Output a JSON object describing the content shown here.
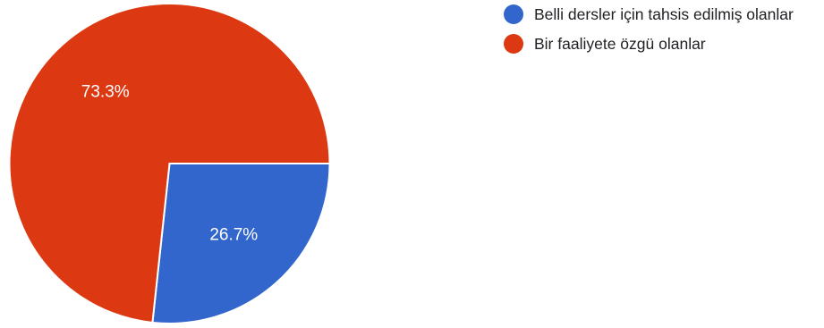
{
  "chart_data": {
    "type": "pie",
    "slices": [
      {
        "label": "Belli dersler için tahsis edilmiş olanlar",
        "value": 26.7,
        "display": "26.7%",
        "color": "#3366cc"
      },
      {
        "label": "Bir faaliyete özgü olanlar",
        "value": 73.3,
        "display": "73.3%",
        "color": "#dc3912"
      }
    ],
    "legend_position": "right",
    "start": "3 o'clock, clockwise"
  }
}
